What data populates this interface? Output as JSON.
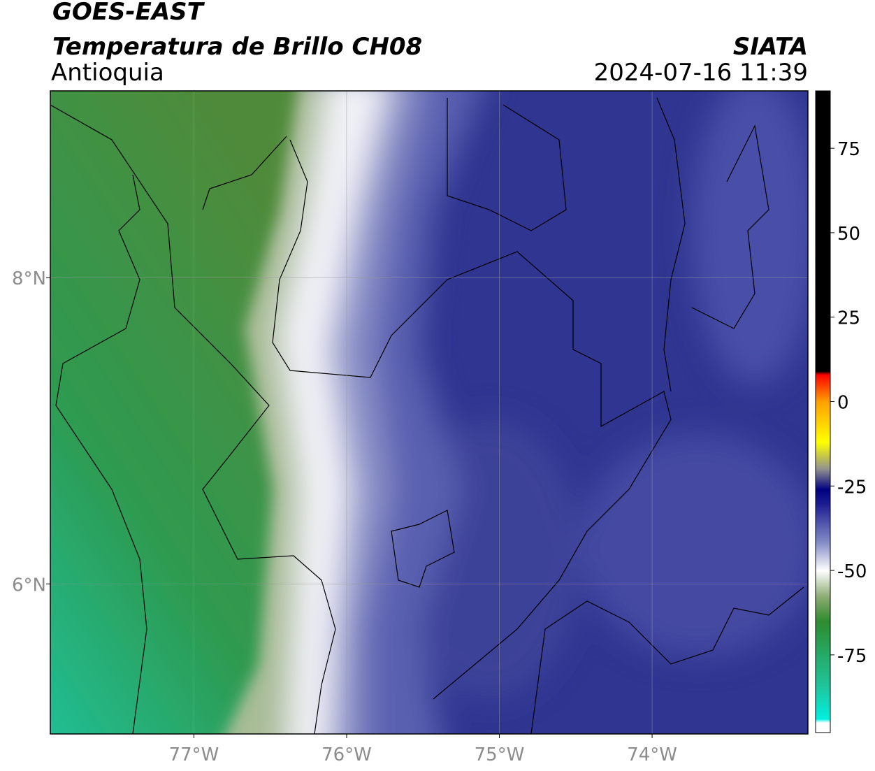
{
  "header": {
    "satellite": "GOES-EAST",
    "product": "Temperatura de Brillo CH08",
    "region": "Antioquia",
    "source": "SIATA",
    "datetime": "2024-07-16 11:39"
  },
  "map": {
    "lonlim": [
      -77.94,
      -72.98
    ],
    "latlim": [
      5.02,
      9.22
    ],
    "lonticks": [
      {
        "value": -77,
        "label": "77°W"
      },
      {
        "value": -76,
        "label": "76°W"
      },
      {
        "value": -75,
        "label": "75°W"
      },
      {
        "value": -74,
        "label": "74°W"
      }
    ],
    "latticks": [
      {
        "value": 8,
        "label": "8°N"
      },
      {
        "value": 6,
        "label": "6°N"
      }
    ],
    "grid": true
  },
  "colorbar": {
    "lim": [
      -98,
      92
    ],
    "ticks": [
      75,
      50,
      25,
      0,
      -25,
      -50,
      -75
    ],
    "stops": [
      {
        "value": -98,
        "color": "#ffffff"
      },
      {
        "value": -95,
        "color": "#ffffff"
      },
      {
        "value": -94,
        "color": "#00f0e0"
      },
      {
        "value": -85,
        "color": "#1ec8a0"
      },
      {
        "value": -65,
        "color": "#2e8b2e"
      },
      {
        "value": -58,
        "color": "#8aaa70"
      },
      {
        "value": -50,
        "color": "#ffffff"
      },
      {
        "value": -42,
        "color": "#8890c8"
      },
      {
        "value": -30,
        "color": "#1a1a90"
      },
      {
        "value": -26,
        "color": "#000080"
      },
      {
        "value": -20,
        "color": "#909090"
      },
      {
        "value": -12,
        "color": "#ffff00"
      },
      {
        "value": 0,
        "color": "#ffa000"
      },
      {
        "value": 8,
        "color": "#ff0000"
      },
      {
        "value": 9,
        "color": "#000000"
      },
      {
        "value": 92,
        "color": "#000000"
      }
    ]
  }
}
